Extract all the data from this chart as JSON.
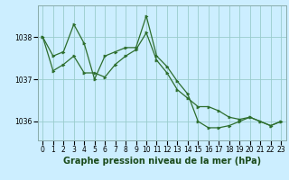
{
  "xlabel": "Graphe pression niveau de la mer (hPa)",
  "bg_color": "#cceeff",
  "grid_color": "#99cccc",
  "line_color": "#2d6e2d",
  "marker_color": "#2d6e2d",
  "ylim": [
    1035.55,
    1038.75
  ],
  "xlim": [
    -0.5,
    23.5
  ],
  "yticks": [
    1036,
    1037,
    1038
  ],
  "xticks": [
    0,
    1,
    2,
    3,
    4,
    5,
    6,
    7,
    8,
    9,
    10,
    11,
    12,
    13,
    14,
    15,
    16,
    17,
    18,
    19,
    20,
    21,
    22,
    23
  ],
  "series1_x": [
    0,
    1,
    2,
    3,
    4,
    5,
    6,
    7,
    8,
    9,
    10,
    11,
    12,
    13,
    14,
    15,
    16,
    17,
    18,
    19,
    20,
    21,
    22,
    23
  ],
  "series1_y": [
    1038.0,
    1037.55,
    1037.65,
    1038.3,
    1037.85,
    1037.0,
    1037.55,
    1037.65,
    1037.75,
    1037.75,
    1038.5,
    1037.55,
    1037.3,
    1036.95,
    1036.65,
    1036.0,
    1035.85,
    1035.85,
    1035.9,
    1036.0,
    1036.1,
    1036.0,
    1035.9,
    1036.0
  ],
  "series2_x": [
    0,
    1,
    2,
    3,
    4,
    5,
    6,
    7,
    8,
    9,
    10,
    11,
    12,
    13,
    14,
    15,
    16,
    17,
    18,
    19,
    20,
    21,
    22,
    23
  ],
  "series2_y": [
    1038.0,
    1037.2,
    1037.35,
    1037.55,
    1037.15,
    1037.15,
    1037.05,
    1037.35,
    1037.55,
    1037.7,
    1038.1,
    1037.45,
    1037.15,
    1036.75,
    1036.55,
    1036.35,
    1036.35,
    1036.25,
    1036.1,
    1036.05,
    1036.1,
    1036.0,
    1035.9,
    1036.0
  ],
  "tick_fontsize": 5.5,
  "label_fontsize": 7.0
}
